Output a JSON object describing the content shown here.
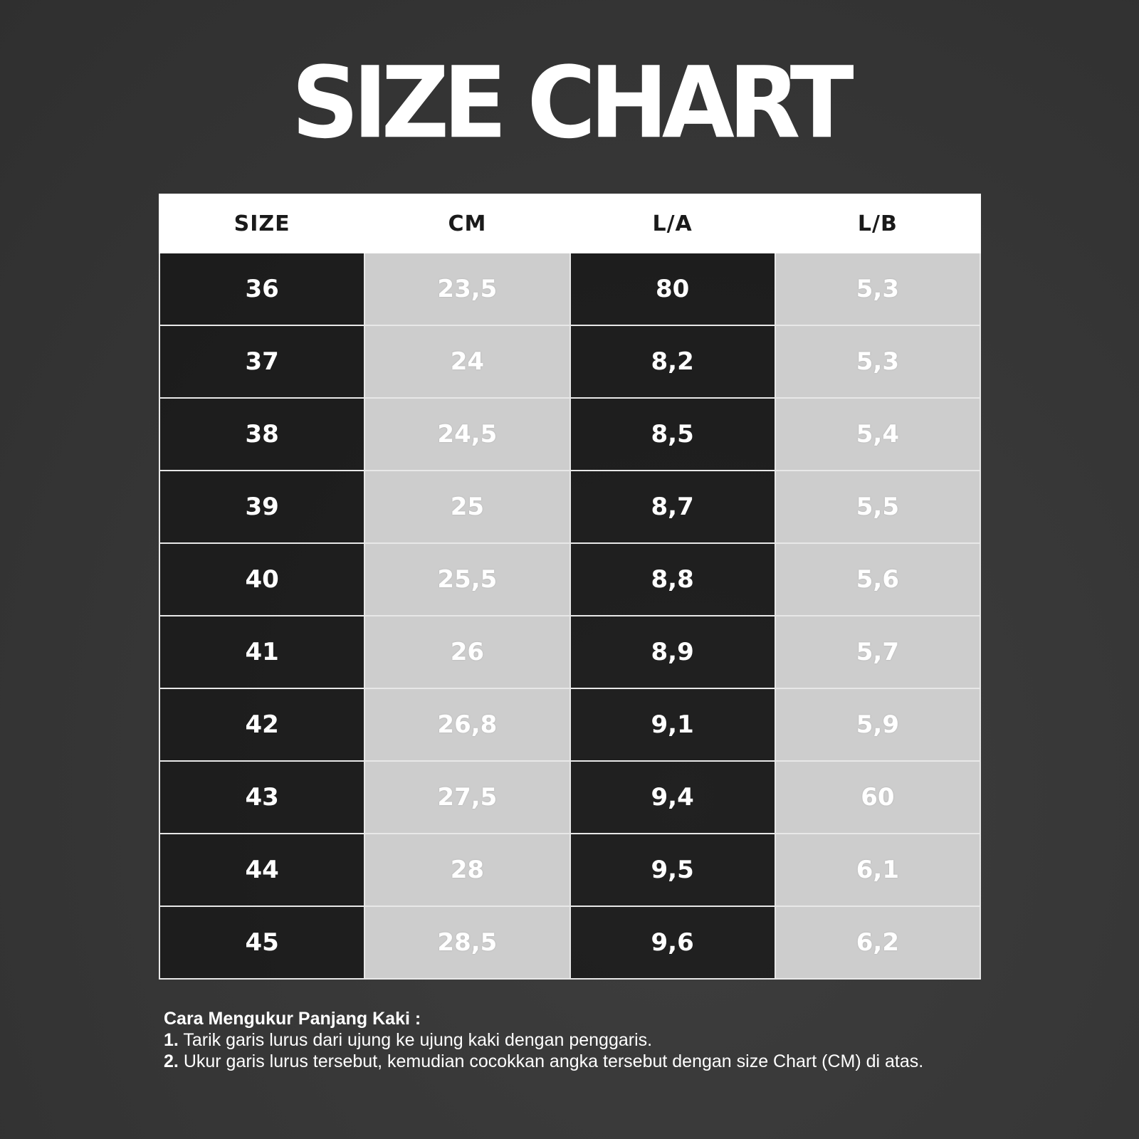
{
  "title": "SIZE CHART",
  "table": {
    "header": [
      "SIZE",
      "CM",
      "L/A",
      "L/B"
    ],
    "rows": [
      [
        "36",
        "23,5",
        "80",
        "5,3"
      ],
      [
        "37",
        "24",
        "8,2",
        "5,3"
      ],
      [
        "38",
        "24,5",
        "8,5",
        "5,4"
      ],
      [
        "39",
        "25",
        "8,7",
        "5,5"
      ],
      [
        "40",
        "25,5",
        "8,8",
        "5,6"
      ],
      [
        "41",
        "26",
        "8,9",
        "5,7"
      ],
      [
        "42",
        "26,8",
        "9,1",
        "5,9"
      ],
      [
        "43",
        "27,5",
        "9,4",
        "60"
      ],
      [
        "44",
        "28",
        "9,5",
        "6,1"
      ],
      [
        "45",
        "28,5",
        "9,6",
        "6,2"
      ]
    ]
  },
  "instructions": {
    "heading": "Cara Mengukur Panjang Kaki :",
    "steps": [
      {
        "number": "1.",
        "text": "Tarik garis lurus dari ujung ke ujung kaki dengan penggaris."
      },
      {
        "number": "2.",
        "text": "Ukur garis lurus tersebut, kemudian cocokkan angka tersebut dengan size Chart (CM) di atas."
      }
    ]
  }
}
